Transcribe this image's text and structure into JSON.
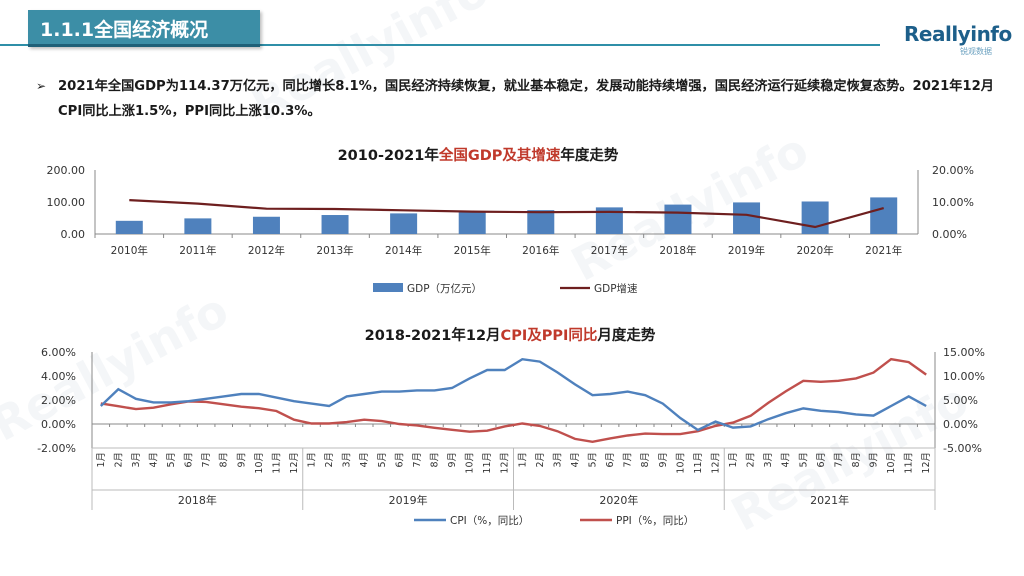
{
  "header": {
    "title": "1.1.1全国经济概况",
    "logo": "Reallyinfo",
    "logo_sub": "锐观数据"
  },
  "bullet": {
    "text": "2021年全国GDP为114.37万亿元，同比增长8.1%，国民经济持续恢复，就业基本稳定，发展动能持续增强，国民经济运行延续稳定恢复态势。2021年12月CPI同比上涨1.5%，PPI同比上涨10.3%。"
  },
  "colors": {
    "accent": "#3c8ea6",
    "gdp_bar": "#4f81bd",
    "gdp_growth_line": "#6e1f1f",
    "cpi_line": "#4f81bd",
    "ppi_line": "#c0504d",
    "title_highlight": "#c0392b"
  },
  "chart_data": [
    {
      "type": "bar",
      "title_parts": [
        "2010-2021年",
        "全国GDP及其增速",
        "年度走势"
      ],
      "categories": [
        "2010年",
        "2011年",
        "2012年",
        "2013年",
        "2014年",
        "2015年",
        "2016年",
        "2017年",
        "2018年",
        "2019年",
        "2020年",
        "2021年"
      ],
      "y_left": {
        "ticks": [
          "200.00",
          "100.00",
          "0.00"
        ],
        "range": [
          0,
          200
        ]
      },
      "y_right": {
        "ticks": [
          "20.00%",
          "10.00%",
          "0.00%"
        ],
        "range": [
          0,
          20
        ]
      },
      "series": [
        {
          "name": "GDP（万亿元）",
          "type": "bar",
          "axis": "left",
          "values": [
            41.2,
            48.8,
            53.9,
            59.3,
            64.4,
            68.9,
            74.6,
            83.2,
            91.9,
            98.7,
            101.6,
            114.37
          ]
        },
        {
          "name": "GDP增速",
          "type": "line",
          "axis": "right",
          "values": [
            10.6,
            9.5,
            7.9,
            7.8,
            7.4,
            7.0,
            6.8,
            6.9,
            6.7,
            6.0,
            2.2,
            8.1
          ]
        }
      ],
      "legend": "bottom"
    },
    {
      "type": "line",
      "title_parts": [
        "2018-2021年12月",
        "CPI及PPI同比",
        "月度走势"
      ],
      "month_labels": [
        "1月",
        "2月",
        "3月",
        "4月",
        "5月",
        "6月",
        "7月",
        "8月",
        "9月",
        "10月",
        "11月",
        "12月"
      ],
      "years": [
        "2018年",
        "2019年",
        "2020年",
        "2021年"
      ],
      "y_left": {
        "ticks": [
          "6.00%",
          "4.00%",
          "2.00%",
          "0.00%",
          "-2.00%"
        ],
        "range": [
          -2,
          6
        ]
      },
      "y_right": {
        "ticks": [
          "15.00%",
          "10.00%",
          "5.00%",
          "0.00%",
          "-5.00%"
        ],
        "range": [
          -5,
          15
        ]
      },
      "series": [
        {
          "name": "CPI（%，同比）",
          "axis": "left",
          "values": [
            1.5,
            2.9,
            2.1,
            1.8,
            1.8,
            1.9,
            2.1,
            2.3,
            2.5,
            2.5,
            2.2,
            1.9,
            1.7,
            1.5,
            2.3,
            2.5,
            2.7,
            2.7,
            2.8,
            2.8,
            3.0,
            3.8,
            4.5,
            4.5,
            5.4,
            5.2,
            4.3,
            3.3,
            2.4,
            2.5,
            2.7,
            2.4,
            1.7,
            0.5,
            -0.5,
            0.2,
            -0.3,
            -0.2,
            0.4,
            0.9,
            1.3,
            1.1,
            1.0,
            0.8,
            0.7,
            1.5,
            2.3,
            1.5
          ]
        },
        {
          "name": "PPI（%，同比）",
          "axis": "right",
          "values": [
            4.3,
            3.7,
            3.1,
            3.4,
            4.1,
            4.7,
            4.6,
            4.1,
            3.6,
            3.3,
            2.7,
            0.9,
            0.1,
            0.1,
            0.4,
            0.9,
            0.6,
            0.0,
            -0.3,
            -0.8,
            -1.2,
            -1.6,
            -1.4,
            -0.5,
            0.1,
            -0.4,
            -1.5,
            -3.1,
            -3.7,
            -3.0,
            -2.4,
            -2.0,
            -2.1,
            -2.1,
            -1.5,
            -0.4,
            0.3,
            1.7,
            4.4,
            6.8,
            9.0,
            8.8,
            9.0,
            9.5,
            10.7,
            13.5,
            12.9,
            10.3
          ]
        }
      ],
      "legend": "bottom"
    }
  ]
}
